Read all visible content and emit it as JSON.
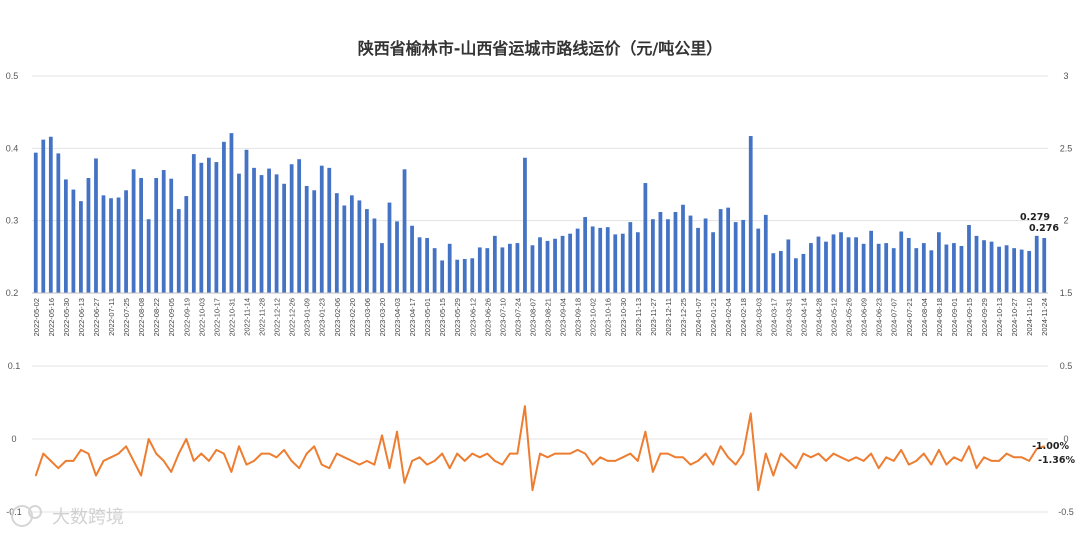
{
  "chart_data": {
    "title": "陕西省榆林市-山西省运城市路线运价（元/吨公里）",
    "type": "bar+line",
    "x": [
      "2022-05-02",
      "2022-05-09",
      "2022-05-16",
      "2022-05-23",
      "2022-05-30",
      "2022-06-06",
      "2022-06-13",
      "2022-06-20",
      "2022-06-27",
      "2022-07-04",
      "2022-07-11",
      "2022-07-18",
      "2022-07-25",
      "2022-08-01",
      "2022-08-08",
      "2022-08-15",
      "2022-08-22",
      "2022-08-29",
      "2022-09-05",
      "2022-09-12",
      "2022-09-19",
      "2022-09-26",
      "2022-10-03",
      "2022-10-10",
      "2022-10-17",
      "2022-10-24",
      "2022-10-31",
      "2022-11-07",
      "2022-11-14",
      "2022-11-21",
      "2022-11-28",
      "2022-12-05",
      "2022-12-12",
      "2022-12-19",
      "2022-12-26",
      "2023-01-02",
      "2023-01-09",
      "2023-01-16",
      "2023-01-23",
      "2023-01-30",
      "2023-02-06",
      "2023-02-13",
      "2023-02-20",
      "2023-02-27",
      "2023-03-06",
      "2023-03-13",
      "2023-03-20",
      "2023-03-27",
      "2023-04-03",
      "2023-04-10",
      "2023-04-17",
      "2023-04-24",
      "2023-05-01",
      "2023-05-08",
      "2023-05-15",
      "2023-05-22",
      "2023-05-29",
      "2023-06-05",
      "2023-06-12",
      "2023-06-19",
      "2023-06-26",
      "2023-07-03",
      "2023-07-10",
      "2023-07-17",
      "2023-07-24",
      "2023-07-31",
      "2023-08-07",
      "2023-08-14",
      "2023-08-21",
      "2023-08-28",
      "2023-09-04",
      "2023-09-11",
      "2023-09-18",
      "2023-09-25",
      "2023-10-02",
      "2023-10-09",
      "2023-10-16",
      "2023-10-23",
      "2023-10-30",
      "2023-11-06",
      "2023-11-13",
      "2023-11-20",
      "2023-11-27",
      "2023-12-04",
      "2023-12-11",
      "2023-12-18",
      "2023-12-25",
      "2024-01-01",
      "2024-01-07",
      "2024-01-14",
      "2024-01-21",
      "2024-01-28",
      "2024-02-04",
      "2024-02-11",
      "2024-02-18",
      "2024-02-25",
      "2024-03-03",
      "2024-03-10",
      "2024-03-17",
      "2024-03-24",
      "2024-03-31",
      "2024-04-07",
      "2024-04-14",
      "2024-04-21",
      "2024-04-28",
      "2024-05-05",
      "2024-05-12",
      "2024-05-19",
      "2024-05-26",
      "2024-06-02",
      "2024-06-09",
      "2024-06-16",
      "2024-06-23",
      "2024-06-30",
      "2024-07-07",
      "2024-07-14",
      "2024-07-21",
      "2024-07-28",
      "2024-08-04",
      "2024-08-11",
      "2024-08-18",
      "2024-08-25",
      "2024-09-01",
      "2024-09-08",
      "2024-09-15",
      "2024-09-22",
      "2024-09-29",
      "2024-10-06",
      "2024-10-13",
      "2024-10-20",
      "2024-10-27",
      "2024-11-03",
      "2024-11-10",
      "2024-11-17",
      "2024-11-24"
    ],
    "x_tick_labels": [
      "2022-05-02",
      "2022-05-16",
      "2022-05-30",
      "2022-06-13",
      "2022-06-27",
      "2022-07-11",
      "2022-07-25",
      "2022-08-08",
      "2022-08-22",
      "2022-09-05",
      "2022-09-19",
      "2022-10-03",
      "2022-10-17",
      "2022-10-31",
      "2022-11-14",
      "2022-11-28",
      "2022-12-12",
      "2022-12-26",
      "2023-01-09",
      "2023-01-23",
      "2023-02-06",
      "2023-02-20",
      "2023-03-06",
      "2023-03-20",
      "2023-04-03",
      "2023-04-17",
      "2023-05-01",
      "2023-05-15",
      "2023-05-29",
      "2023-06-12",
      "2023-06-26",
      "2023-07-10",
      "2023-07-24",
      "2023-08-07",
      "2023-08-21",
      "2023-09-04",
      "2023-09-18",
      "2023-10-02",
      "2023-10-16",
      "2023-10-30",
      "2023-11-13",
      "2023-11-27",
      "2023-12-11",
      "2023-12-25",
      "2024-01-07",
      "2024-01-21",
      "2024-02-04",
      "2024-02-18",
      "2024-03-03",
      "2024-03-17",
      "2024-03-31",
      "2024-04-14",
      "2024-04-28",
      "2024-05-12",
      "2024-05-26",
      "2024-06-09",
      "2024-06-23",
      "2024-07-07",
      "2024-07-21",
      "2024-08-04",
      "2024-08-18",
      "2024-09-01",
      "2024-09-15",
      "2024-09-29",
      "2024-10-13",
      "2024-10-27",
      "2024-11-10",
      "2024-11-24"
    ],
    "series": [
      {
        "kind": "bar",
        "color": "#4472C4",
        "values": [
          0.394,
          0.412,
          0.416,
          0.393,
          0.357,
          0.343,
          0.327,
          0.359,
          0.386,
          0.335,
          0.331,
          0.332,
          0.342,
          0.371,
          0.359,
          0.302,
          0.359,
          0.37,
          0.358,
          0.316,
          0.334,
          0.392,
          0.38,
          0.387,
          0.381,
          0.409,
          0.421,
          0.365,
          0.398,
          0.373,
          0.363,
          0.372,
          0.364,
          0.351,
          0.378,
          0.385,
          0.348,
          0.342,
          0.376,
          0.373,
          0.338,
          0.321,
          0.335,
          0.328,
          0.316,
          0.303,
          0.269,
          0.325,
          0.299,
          0.371,
          0.293,
          0.277,
          0.276,
          0.262,
          0.245,
          0.268,
          0.246,
          0.247,
          0.248,
          0.263,
          0.262,
          0.279,
          0.263,
          0.268,
          0.269,
          0.387,
          0.266,
          0.277,
          0.272,
          0.275,
          0.279,
          0.282,
          0.289,
          0.305,
          0.292,
          0.29,
          0.291,
          0.281,
          0.282,
          0.298,
          0.284,
          0.352,
          0.302,
          0.312,
          0.302,
          0.312,
          0.322,
          0.307,
          0.29,
          0.303,
          0.284,
          0.316,
          0.318,
          0.298,
          0.301,
          0.417,
          0.289,
          0.308,
          0.255,
          0.258,
          0.274,
          0.248,
          0.254,
          0.269,
          0.278,
          0.271,
          0.281,
          0.284,
          0.277,
          0.277,
          0.268,
          0.286,
          0.268,
          0.269,
          0.262,
          0.285,
          0.276,
          0.262,
          0.269,
          0.259,
          0.284,
          0.267,
          0.269,
          0.265,
          0.294,
          0.279,
          0.273,
          0.271,
          0.264,
          0.266,
          0.262,
          0.26,
          0.258,
          0.279,
          0.276
        ]
      },
      {
        "kind": "line",
        "color": "#ED7D31",
        "values": [
          -0.05,
          -0.02,
          -0.03,
          -0.04,
          -0.03,
          -0.03,
          -0.015,
          -0.02,
          -0.05,
          -0.03,
          -0.025,
          -0.02,
          -0.01,
          -0.03,
          -0.05,
          0.0,
          -0.02,
          -0.03,
          -0.045,
          -0.02,
          0.0,
          -0.03,
          -0.02,
          -0.03,
          -0.015,
          -0.02,
          -0.045,
          -0.01,
          -0.035,
          -0.03,
          -0.02,
          -0.02,
          -0.025,
          -0.015,
          -0.03,
          -0.04,
          -0.02,
          -0.01,
          -0.035,
          -0.04,
          -0.02,
          -0.025,
          -0.03,
          -0.035,
          -0.03,
          -0.035,
          0.005,
          -0.04,
          0.01,
          -0.06,
          -0.03,
          -0.025,
          -0.035,
          -0.03,
          -0.02,
          -0.04,
          -0.02,
          -0.03,
          -0.02,
          -0.025,
          -0.02,
          -0.03,
          -0.035,
          -0.02,
          -0.02,
          0.045,
          -0.07,
          -0.02,
          -0.025,
          -0.02,
          -0.02,
          -0.02,
          -0.015,
          -0.02,
          -0.035,
          -0.025,
          -0.03,
          -0.03,
          -0.025,
          -0.02,
          -0.03,
          0.01,
          -0.045,
          -0.02,
          -0.02,
          -0.025,
          -0.025,
          -0.035,
          -0.03,
          -0.02,
          -0.035,
          -0.01,
          -0.025,
          -0.035,
          -0.02,
          0.035,
          -0.07,
          -0.02,
          -0.05,
          -0.02,
          -0.03,
          -0.04,
          -0.02,
          -0.025,
          -0.02,
          -0.03,
          -0.02,
          -0.025,
          -0.03,
          -0.025,
          -0.03,
          -0.02,
          -0.04,
          -0.025,
          -0.03,
          -0.015,
          -0.035,
          -0.03,
          -0.02,
          -0.035,
          -0.015,
          -0.035,
          -0.025,
          -0.03,
          -0.01,
          -0.04,
          -0.025,
          -0.03,
          -0.03,
          -0.02,
          -0.025,
          -0.025,
          -0.03,
          -0.0136,
          -0.01
        ]
      }
    ],
    "top_left_axis": {
      "ticks": [
        "0.5",
        "0.4",
        "0.3",
        "0.2"
      ],
      "min": 0.2,
      "max": 0.5
    },
    "top_right_axis": {
      "ticks": [
        "3",
        "2.5",
        "2",
        "1.5"
      ],
      "min": 1.5,
      "max": 3
    },
    "bottom_left_axis": {
      "ticks": [
        "0.1",
        "0",
        "-0.1"
      ],
      "min": -0.1,
      "max": 0.1
    },
    "bottom_right_axis": {
      "ticks": [
        "0.5",
        "0",
        "-0.5"
      ],
      "min": -0.5,
      "max": 0.5
    },
    "data_labels": [
      {
        "text": "0.279"
      },
      {
        "text": "0.276"
      },
      {
        "text": "-1.00%"
      },
      {
        "text": "-1.36%"
      }
    ],
    "grid": true
  },
  "watermark": {
    "text": "大数跨境"
  }
}
